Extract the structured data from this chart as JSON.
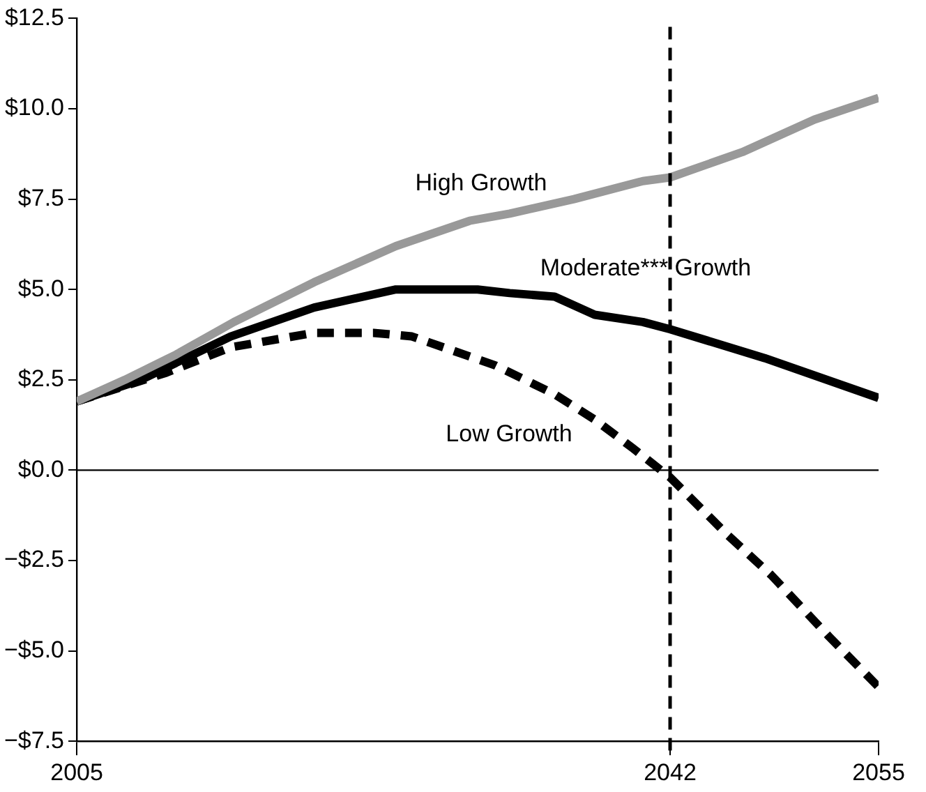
{
  "chart_data": {
    "type": "line",
    "xlim": [
      2005,
      2055
    ],
    "xticks": [
      2005,
      2042,
      2055
    ],
    "ylim": [
      -7.5,
      12.5
    ],
    "yticks": [
      {
        "value": -7.5,
        "label": "−$7.5"
      },
      {
        "value": -5,
        "label": "−$5.0"
      },
      {
        "value": -2.5,
        "label": "−$2.5"
      },
      {
        "value": 0,
        "label": "$0.0"
      },
      {
        "value": 2.5,
        "label": "$2.5"
      },
      {
        "value": 5,
        "label": "$5.0"
      },
      {
        "value": 7.5,
        "label": "$7.5"
      },
      {
        "value": 10,
        "label": "$10.0"
      },
      {
        "value": 12.5,
        "label": "$12.5"
      }
    ],
    "grid": false,
    "legend": false,
    "marker": "none",
    "ref_lines": [
      {
        "axis": "y",
        "value": 0,
        "color": "#000000",
        "line_style": "solid"
      },
      {
        "axis": "x",
        "value": 2042,
        "color": "#000000",
        "line_style": "dashed"
      }
    ],
    "series": [
      {
        "name": "High Growth",
        "color": "#999999",
        "line_style": "solid",
        "x": [
          2005,
          2008,
          2011.2,
          2014.8,
          2019.8,
          2024.9,
          2029.5,
          2032,
          2036,
          2040.3,
          2042,
          2046.5,
          2051,
          2055
        ],
        "values": [
          1.9,
          2.5,
          3.2,
          4.1,
          5.2,
          6.2,
          6.9,
          7.1,
          7.5,
          8.0,
          8.1,
          8.8,
          9.7,
          10.3
        ]
      },
      {
        "name": "Moderate*** Growth",
        "color": "#000000",
        "line_style": "solid",
        "x": [
          2005,
          2009,
          2014.6,
          2019.8,
          2024.9,
          2030,
          2032,
          2034.8,
          2037.3,
          2040.3,
          2042,
          2047.9,
          2055
        ],
        "values": [
          1.9,
          2.5,
          3.7,
          4.5,
          5.0,
          5.0,
          4.9,
          4.8,
          4.3,
          4.1,
          3.9,
          3.1,
          2.0
        ]
      },
      {
        "name": "Low Growth",
        "color": "#000000",
        "line_style": "dashed",
        "x": [
          2005,
          2010.6,
          2014.6,
          2019.8,
          2023.5,
          2025.9,
          2031.1,
          2034.8,
          2037.3,
          2039.7,
          2042,
          2045.6,
          2048.3,
          2051.9,
          2055
        ],
        "values": [
          1.9,
          2.7,
          3.4,
          3.8,
          3.8,
          3.7,
          2.9,
          2.1,
          1.4,
          0.6,
          -0.2,
          -1.8,
          -2.9,
          -4.6,
          -6.0
        ]
      }
    ]
  }
}
